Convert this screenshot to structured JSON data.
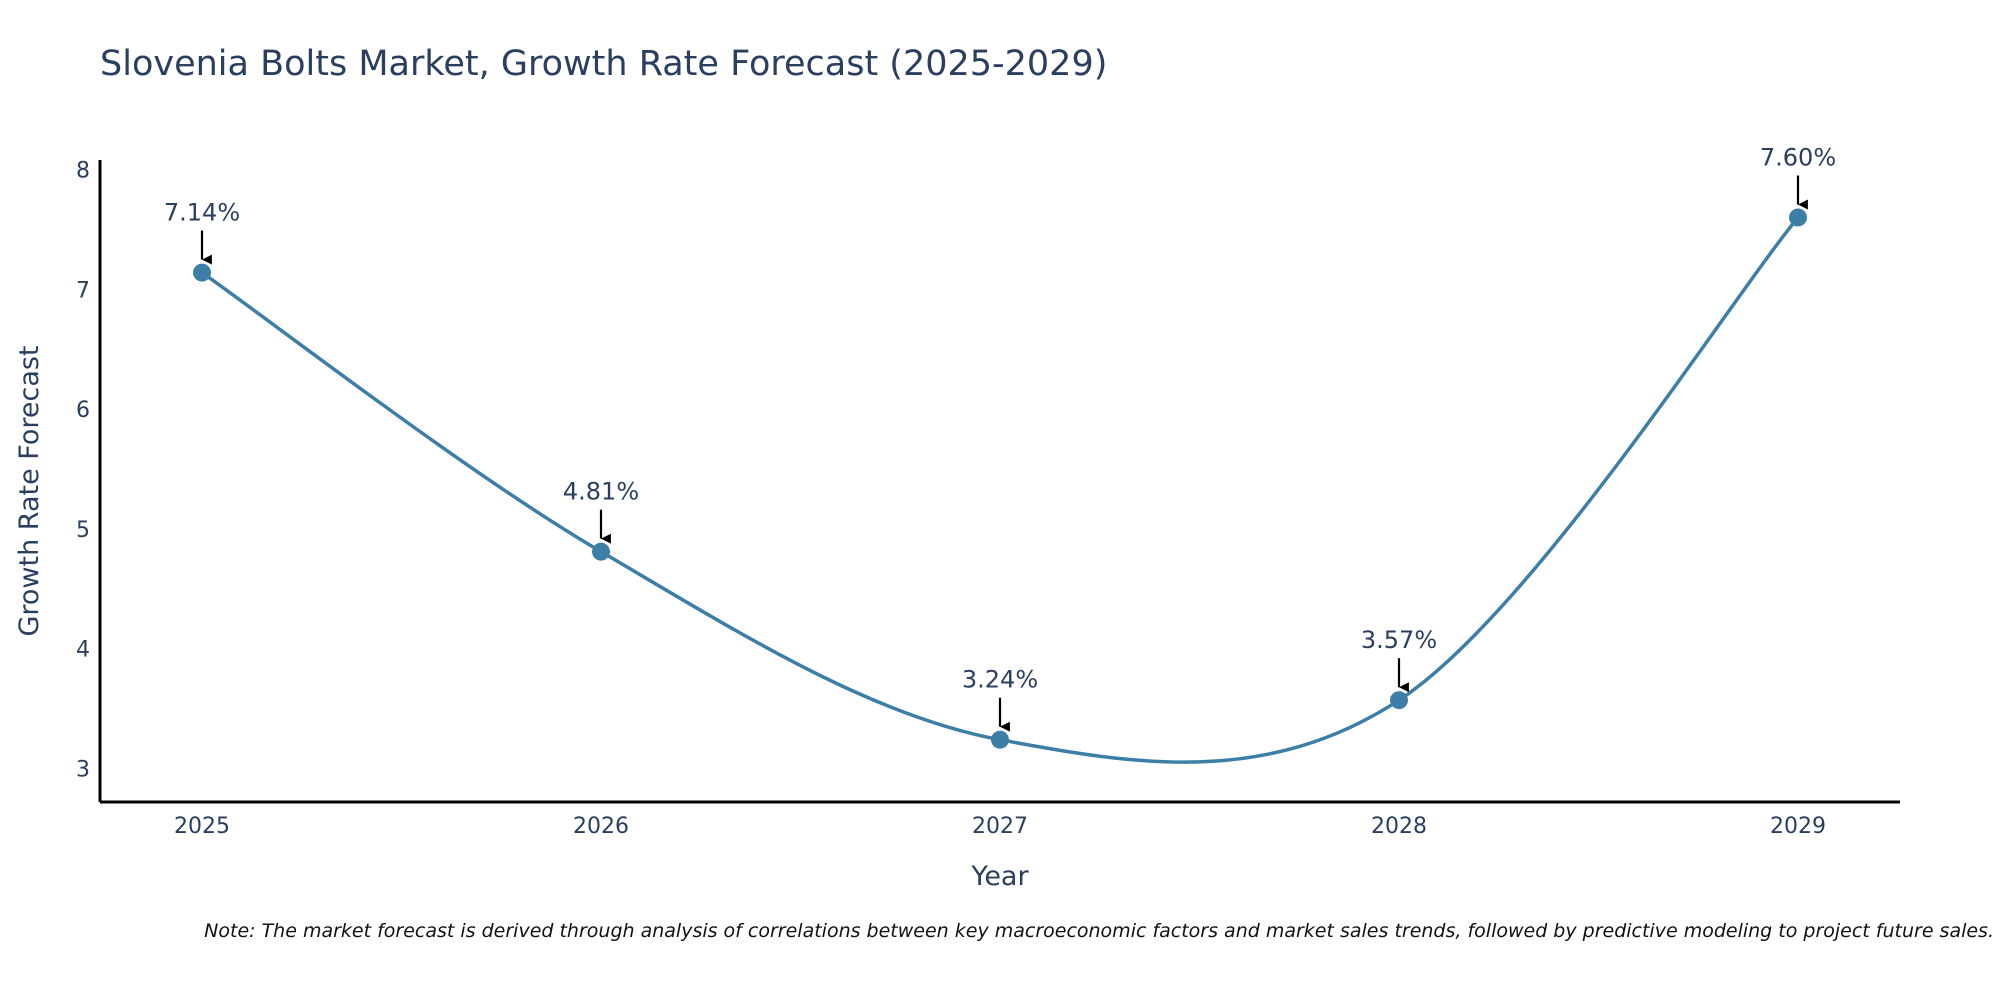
{
  "chart_data": {
    "type": "line",
    "title": "Slovenia Bolts Market, Growth Rate Forecast (2025-2029)",
    "xlabel": "Year",
    "ylabel": "Growth Rate Forecast",
    "categories": [
      "2025",
      "2026",
      "2027",
      "2028",
      "2029"
    ],
    "values": [
      7.14,
      4.81,
      3.24,
      3.57,
      7.6
    ],
    "data_labels": [
      "7.14%",
      "4.81%",
      "3.24%",
      "3.57%",
      "7.60%"
    ],
    "yticks": [
      3,
      4,
      5,
      6,
      7,
      8
    ],
    "ylim": [
      2.72,
      8.08
    ],
    "line_shape": "spline",
    "grid": false,
    "line_color": "#3d7ea6",
    "marker_color": "#3d7ea6",
    "arrow_color": "#000000",
    "note": "Note: The market forecast is derived through analysis of correlations between key macroeconomic factors and market sales trends, followed by predictive modeling to project future sales."
  }
}
